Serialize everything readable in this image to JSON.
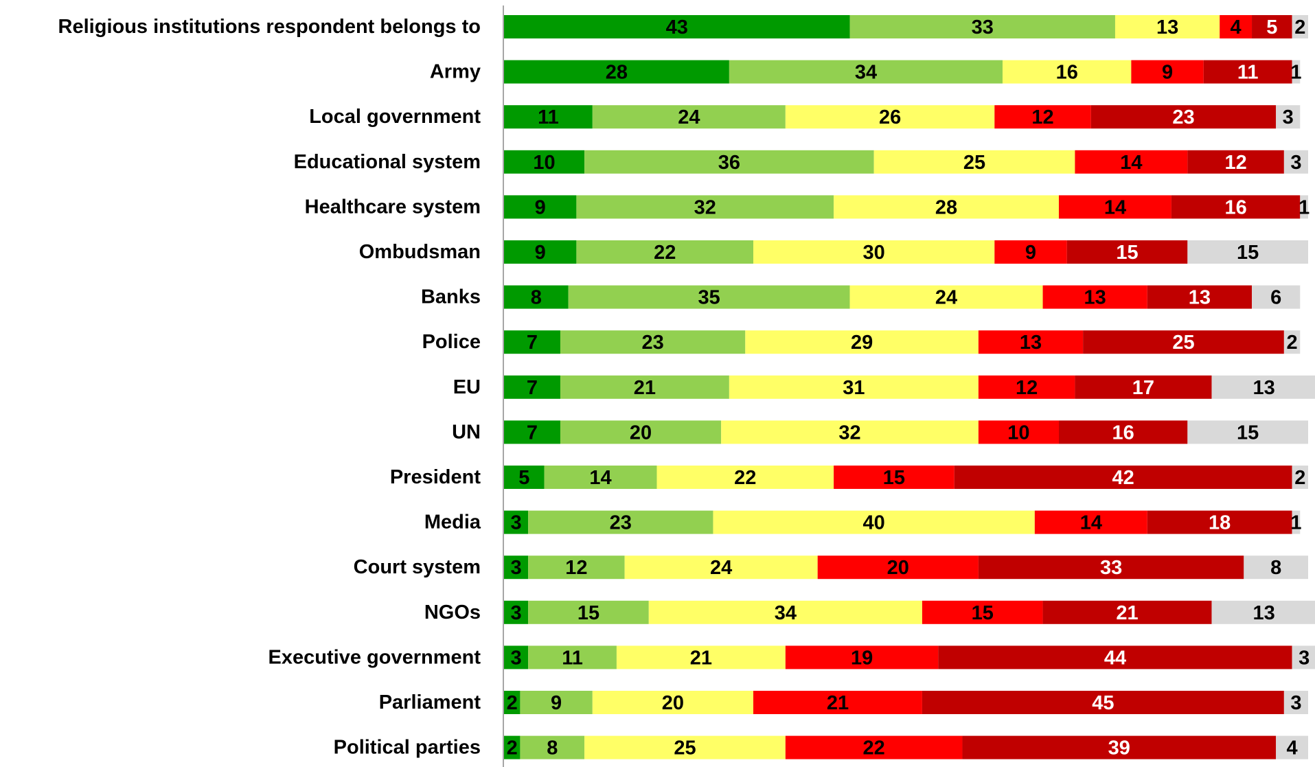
{
  "chart_data": {
    "type": "bar",
    "orientation": "horizontal",
    "stacked": true,
    "grid": false,
    "legend": "none",
    "title": "",
    "xlabel": "",
    "ylabel": "",
    "xlim": [
      0,
      100
    ],
    "categories": [
      "Religious institutions respondent belongs to",
      "Army",
      "Local government",
      "Educational system",
      "Healthcare system",
      "Ombudsman",
      "Banks",
      "Police",
      "EU",
      "UN",
      "President",
      "Media",
      "Court system",
      "NGOs",
      "Executive government",
      "Parliament",
      "Political parties"
    ],
    "series": [
      {
        "color": "#009a00",
        "label_color": "#000000",
        "values": [
          43,
          28,
          11,
          10,
          9,
          9,
          8,
          7,
          7,
          7,
          5,
          3,
          3,
          3,
          3,
          2,
          2
        ]
      },
      {
        "color": "#92d050",
        "label_color": "#000000",
        "values": [
          33,
          34,
          24,
          36,
          32,
          22,
          35,
          23,
          21,
          20,
          14,
          23,
          12,
          15,
          11,
          9,
          8
        ]
      },
      {
        "color": "#ffff66",
        "label_color": "#000000",
        "values": [
          13,
          16,
          26,
          25,
          28,
          30,
          24,
          29,
          31,
          32,
          22,
          40,
          24,
          34,
          21,
          20,
          25
        ]
      },
      {
        "color": "#ff0000",
        "label_color": "#000000",
        "values": [
          4,
          9,
          12,
          14,
          14,
          9,
          13,
          13,
          12,
          10,
          15,
          14,
          20,
          15,
          19,
          21,
          22
        ]
      },
      {
        "color": "#c00000",
        "label_color": "#ffffff",
        "values": [
          5,
          11,
          23,
          12,
          16,
          15,
          13,
          25,
          17,
          16,
          42,
          18,
          33,
          21,
          44,
          45,
          39
        ]
      },
      {
        "color": "#d9d9d9",
        "label_color": "#000000",
        "values": [
          2,
          1,
          3,
          3,
          1,
          15,
          6,
          2,
          13,
          15,
          2,
          1,
          8,
          13,
          3,
          3,
          4
        ]
      }
    ]
  }
}
